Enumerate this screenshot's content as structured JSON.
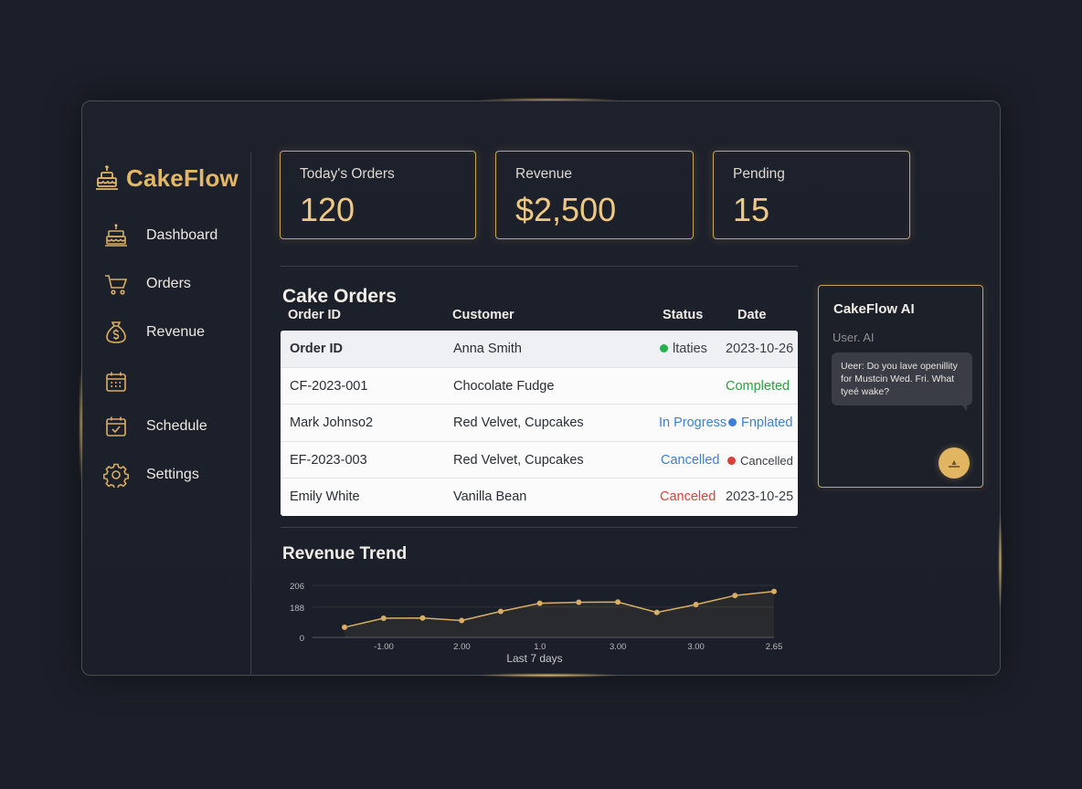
{
  "app": {
    "name": "CakeFlow"
  },
  "sidebar": {
    "items": [
      {
        "label": "Dashboard",
        "icon": "cake-icon"
      },
      {
        "label": "Orders",
        "icon": "cart-icon"
      },
      {
        "label": "Revenue",
        "icon": "money-bag-icon"
      },
      {
        "label": "",
        "icon": "calendar-icon"
      },
      {
        "label": "Schedule",
        "icon": "calendar-check-icon"
      },
      {
        "label": "Settings",
        "icon": "gear-icon"
      }
    ]
  },
  "stats": [
    {
      "label": "Today's Orders",
      "value": "120"
    },
    {
      "label": "Revenue",
      "value": "$2,500"
    },
    {
      "label": "Pending",
      "value": "15"
    }
  ],
  "orders": {
    "title": "Cake Orders",
    "columns": [
      "Order ID",
      "Customer",
      "Status",
      "Date"
    ],
    "rows": [
      {
        "col1": "Order ID",
        "col2": "Anna Smith",
        "status": "ltaties",
        "status_dot": "#22b14c",
        "status_color": "#3a3d44",
        "date": "2023-10-26"
      },
      {
        "col1": "CF-2023-001",
        "col2": "Chocolate Fudge",
        "status": "Completed",
        "status_dot": "",
        "status_color": "#2f9e3e",
        "date": ""
      },
      {
        "col1": "Mark Johnso2",
        "col2": "Red Velvet, Cupcakes",
        "status": "In Progress",
        "status_dot": "",
        "status_color": "#3d7fd6",
        "date": "Fnplated",
        "date_dot": "#3d7fd6",
        "date_color": "#3d7fd6"
      },
      {
        "col1": "EF-2023-003",
        "col2": "Red Velvet, Cupcakes",
        "status": "Cancelled",
        "status_dot": "",
        "status_color": "#3d7fd6",
        "date": "Cancelled",
        "date_dot": "#d9423c",
        "date_color": "#3a3d44"
      },
      {
        "col1": "Emily White",
        "col2": "Vanilla Bean",
        "status": "Canceled",
        "status_dot": "",
        "status_color": "#d9423c",
        "date": "2023-10-25"
      }
    ]
  },
  "ai": {
    "title": "CakeFlow AI",
    "subtitle": "User. AI",
    "message": "Ueer: Do you lave openillity for Mustcin Wed. Fri. What tyeé wake?"
  },
  "chart_data": {
    "type": "line",
    "title": "Revenue Trend",
    "xlabel": "Last 7 days",
    "ylabel": "",
    "y_tick_labels": [
      "0",
      "188",
      "206"
    ],
    "x_tick_labels": [
      "-1.00",
      "2.00",
      "1.0",
      "3.00",
      "3.00",
      "2.65"
    ],
    "ylim": [
      0,
      206
    ],
    "series": [
      {
        "values": [
          40,
          76,
          77,
          67,
          103,
          135,
          139,
          140,
          99,
          130,
          166,
          182
        ]
      }
    ],
    "grid": true,
    "line_color": "#d9ae63"
  },
  "colors": {
    "accent": "#e2b766",
    "background": "#1b1f29",
    "card_border": "#c9a35a"
  }
}
